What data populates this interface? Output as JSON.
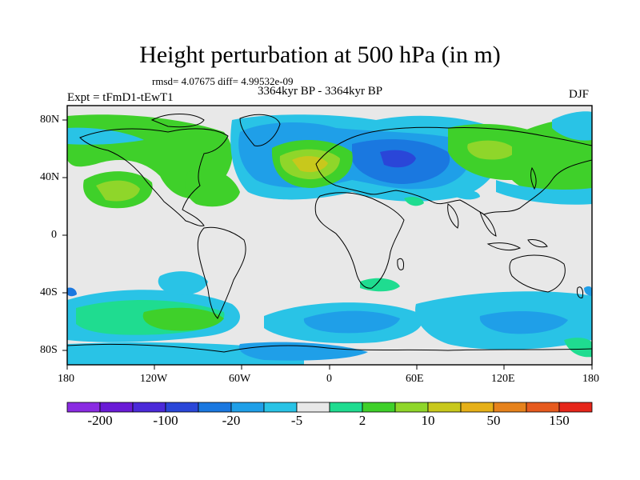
{
  "title": "Height perturbation at 500 hPa (in m)",
  "stats_line": "rmsd= 4.07675 diff= 4.99532e-09",
  "period": "3364kyr BP - 3364kyr BP",
  "experiment": "Expt = tFmD1-tEwT1",
  "season": "DJF",
  "lat_labels": [
    "80N",
    "40N",
    "0",
    "40S",
    "80S"
  ],
  "lon_labels": [
    "180",
    "120W",
    "60W",
    "0",
    "60E",
    "120E",
    "180"
  ],
  "colorbar": {
    "colors": [
      "#8a2be2",
      "#6a1bd6",
      "#4b2ad9",
      "#2a46d8",
      "#1a78e0",
      "#1f9fe8",
      "#29c3e6",
      "#e8e8e8",
      "#1fdc90",
      "#3fd02a",
      "#8fd62a",
      "#c8c81c",
      "#e6b018",
      "#e6821c",
      "#e65a1e",
      "#e6261a"
    ],
    "labels": [
      "-200",
      "-100",
      "-20",
      "-5",
      "2",
      "10",
      "50",
      "150"
    ]
  }
}
